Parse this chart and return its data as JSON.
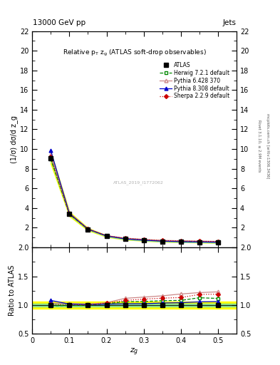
{
  "title_top": "13000 GeV pp",
  "title_right": "Jets",
  "plot_title": "Relative p$_T$ z$_g$ (ATLAS soft-drop observables)",
  "xlabel": "z$_g$",
  "ylabel_main": "(1/σ) dσ/d z_g",
  "ylabel_ratio": "Ratio to ATLAS",
  "watermark": "ATLAS_2019_I1772062",
  "xvals": [
    0.05,
    0.1,
    0.15,
    0.2,
    0.25,
    0.3,
    0.35,
    0.4,
    0.45,
    0.5
  ],
  "atlas_y": [
    9.1,
    3.4,
    1.85,
    1.15,
    0.85,
    0.72,
    0.62,
    0.57,
    0.53,
    0.5
  ],
  "atlas_yerr": [
    0.22,
    0.1,
    0.055,
    0.038,
    0.028,
    0.022,
    0.018,
    0.017,
    0.014,
    0.013
  ],
  "herwig_y": [
    9.0,
    3.38,
    1.84,
    1.18,
    0.9,
    0.765,
    0.668,
    0.617,
    0.598,
    0.558
  ],
  "pythia6_y": [
    9.4,
    3.5,
    1.88,
    1.2,
    0.95,
    0.82,
    0.72,
    0.68,
    0.645,
    0.615
  ],
  "pythia8_y": [
    9.85,
    3.46,
    1.87,
    1.17,
    0.87,
    0.738,
    0.643,
    0.593,
    0.56,
    0.53
  ],
  "sherpa_y": [
    9.2,
    3.42,
    1.86,
    1.19,
    0.92,
    0.795,
    0.695,
    0.645,
    0.628,
    0.595
  ],
  "herwig_ratio": [
    0.989,
    0.994,
    0.995,
    1.026,
    1.059,
    1.063,
    1.077,
    1.082,
    1.128,
    1.116
  ],
  "pythia6_ratio": [
    1.033,
    1.029,
    1.016,
    1.043,
    1.118,
    1.139,
    1.161,
    1.193,
    1.217,
    1.23
  ],
  "pythia8_ratio": [
    1.082,
    1.018,
    1.011,
    1.017,
    1.024,
    1.025,
    1.037,
    1.042,
    1.057,
    1.06
  ],
  "sherpa_ratio": [
    1.011,
    1.006,
    1.005,
    1.035,
    1.082,
    1.104,
    1.121,
    1.132,
    1.185,
    1.19
  ],
  "atlas_band_inner": 0.025,
  "atlas_band_outer": 0.065,
  "atlas_color": "#000000",
  "herwig_color": "#008800",
  "pythia6_color": "#cc8888",
  "pythia8_color": "#0000cc",
  "sherpa_color": "#cc0000",
  "ylim_main": [
    0,
    22
  ],
  "ylim_ratio": [
    0.5,
    2.0
  ],
  "yticks_main": [
    0,
    2,
    4,
    6,
    8,
    10,
    12,
    14,
    16,
    18,
    20,
    22
  ],
  "yticks_ratio": [
    0.5,
    1.0,
    1.5,
    2.0
  ],
  "right_label1": "Rivet 3.1.10, ≥ 2.9M events",
  "right_label2": "mcplots.cern.ch [arXiv:1306.3436]"
}
